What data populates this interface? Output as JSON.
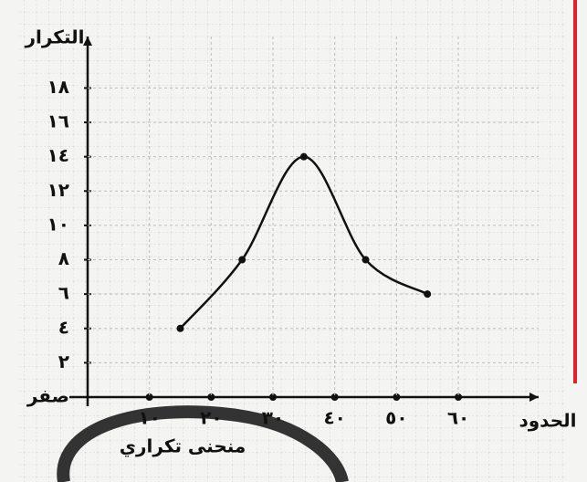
{
  "chart_data": {
    "type": "line",
    "y_label": "التكرار",
    "x_label": "الحدود",
    "annotation": "منحنى تكراري",
    "x": [
      15,
      25,
      35,
      45,
      55
    ],
    "series": [
      {
        "name": "التكرار",
        "color": "#111111",
        "values": [
          4,
          8,
          14,
          8,
          6
        ]
      }
    ],
    "xlim": [
      0,
      73
    ],
    "ylim": [
      0,
      21
    ],
    "xticks": [
      {
        "value": 10,
        "label": "١٠"
      },
      {
        "value": 20,
        "label": "٢٠"
      },
      {
        "value": 30,
        "label": "٣٠"
      },
      {
        "value": 40,
        "label": "٤٠"
      },
      {
        "value": 50,
        "label": "٥٠"
      },
      {
        "value": 60,
        "label": "٦٠"
      }
    ],
    "yticks": [
      {
        "value": 0,
        "label": "صفر"
      },
      {
        "value": 2,
        "label": "٢"
      },
      {
        "value": 4,
        "label": "٤"
      },
      {
        "value": 6,
        "label": "٦"
      },
      {
        "value": 8,
        "label": "٨"
      },
      {
        "value": 10,
        "label": "١٠"
      },
      {
        "value": 12,
        "label": "١٢"
      },
      {
        "value": 14,
        "label": "١٤"
      },
      {
        "value": 16,
        "label": "١٦"
      },
      {
        "value": 18,
        "label": "١٨"
      }
    ],
    "grid": true
  }
}
